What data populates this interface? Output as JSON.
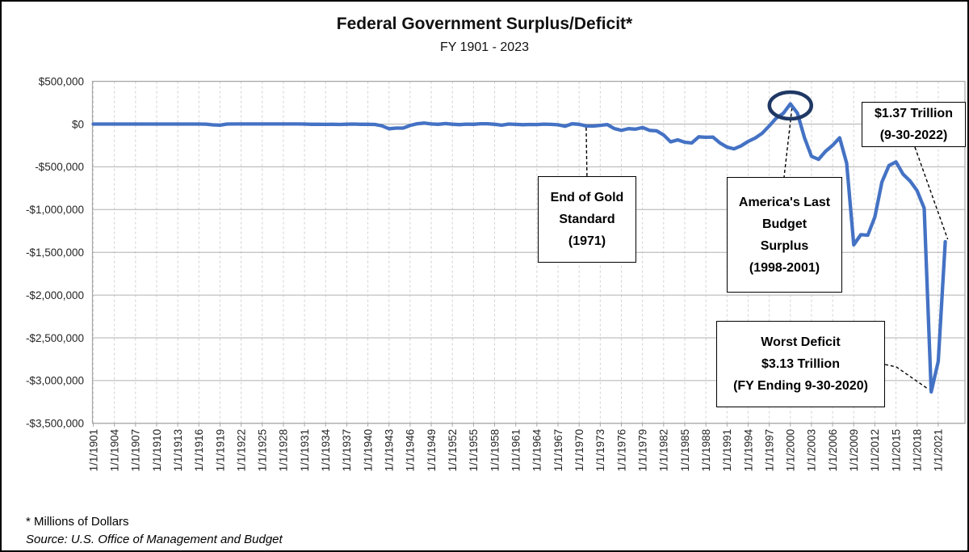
{
  "title": "Federal Government Surplus/Deficit*",
  "subtitle": "FY 1901 - 2023",
  "footnotes": {
    "units": "* Millions of Dollars",
    "source": "Source: U.S. Office of Management and Budget"
  },
  "colors": {
    "line": "#4472C4",
    "highlight_ellipse": "#1F3864",
    "h_gridline": "#b0b0b0",
    "v_gridline": "#d2d2d2",
    "plot_border": "#a6a6a6",
    "tick_text": "#262626",
    "leader_line": "#000000",
    "figure_border": "#000000"
  },
  "annotations": {
    "gold_standard": {
      "lines": [
        "End of Gold",
        "Standard",
        "(1971)"
      ]
    },
    "last_surplus": {
      "lines": [
        "America's Last",
        "Budget",
        "Surplus",
        "(1998-2001)"
      ]
    },
    "deficit_2022": {
      "lines": [
        "$1.37 Trillion",
        "(9-30-2022)"
      ]
    },
    "worst_deficit": {
      "lines": [
        "Worst Deficit",
        "$3.13 Trillion",
        "(FY Ending 9-30-2020)"
      ]
    }
  },
  "chart_data": {
    "type": "line",
    "title": "Federal Government Surplus/Deficit*",
    "subtitle": "FY 1901 - 2023",
    "units": "millions of dollars",
    "xlabel": "",
    "ylabel": "",
    "ylim": [
      -3500000,
      500000
    ],
    "grid": true,
    "line_color": "#4472C4",
    "y_tick_values": [
      500000,
      0,
      -500000,
      -1000000,
      -1500000,
      -2000000,
      -2500000,
      -3000000,
      -3500000
    ],
    "y_tick_labels": [
      "$500,000",
      "$0",
      "-$500,000",
      "-$1,000,000",
      "-$1,500,000",
      "-$2,000,000",
      "-$2,500,000",
      "-$3,000,000",
      "-$3,500,000"
    ],
    "x_tick_labels": [
      "1/1/1901",
      "1/1/1904",
      "1/1/1907",
      "1/1/1910",
      "1/1/1913",
      "1/1/1916",
      "1/1/1919",
      "1/1/1922",
      "1/1/1925",
      "1/1/1928",
      "1/1/1931",
      "1/1/1934",
      "1/1/1937",
      "1/1/1940",
      "1/1/1943",
      "1/1/1946",
      "1/1/1949",
      "1/1/1952",
      "1/1/1955",
      "1/1/1958",
      "1/1/1961",
      "1/1/1964",
      "1/1/1967",
      "1/1/1970",
      "1/1/1973",
      "1/1/1976",
      "1/1/1979",
      "1/1/1982",
      "1/1/1985",
      "1/1/1988",
      "1/1/1991",
      "1/1/1994",
      "1/1/1997",
      "1/1/2000",
      "1/1/2003",
      "1/1/2006",
      "1/1/2009",
      "1/1/2012",
      "1/1/2015",
      "1/1/2018",
      "1/1/2021"
    ],
    "highlight_circle": {
      "year": 2000,
      "value": 236241
    },
    "x": [
      1901,
      1902,
      1903,
      1904,
      1905,
      1906,
      1907,
      1908,
      1909,
      1910,
      1911,
      1912,
      1913,
      1914,
      1915,
      1916,
      1917,
      1918,
      1919,
      1920,
      1921,
      1922,
      1923,
      1924,
      1925,
      1926,
      1927,
      1928,
      1929,
      1930,
      1931,
      1932,
      1933,
      1934,
      1935,
      1936,
      1937,
      1938,
      1939,
      1940,
      1941,
      1942,
      1943,
      1944,
      1945,
      1946,
      1947,
      1948,
      1949,
      1950,
      1951,
      1952,
      1953,
      1954,
      1955,
      1956,
      1957,
      1958,
      1959,
      1960,
      1961,
      1962,
      1963,
      1964,
      1965,
      1966,
      1967,
      1968,
      1969,
      1970,
      1971,
      1972,
      1973,
      1974,
      1975,
      1976,
      1977,
      1978,
      1979,
      1980,
      1981,
      1982,
      1983,
      1984,
      1985,
      1986,
      1987,
      1988,
      1989,
      1990,
      1991,
      1992,
      1993,
      1994,
      1995,
      1996,
      1997,
      1998,
      1999,
      2000,
      2001,
      2002,
      2003,
      2004,
      2005,
      2006,
      2007,
      2008,
      2009,
      2010,
      2011,
      2012,
      2013,
      2014,
      2015,
      2016,
      2017,
      2018,
      2019,
      2020,
      2021,
      2022
    ],
    "values": [
      63,
      77,
      45,
      -43,
      -23,
      25,
      87,
      -57,
      -89,
      -18,
      11,
      3,
      0,
      0,
      -63,
      48,
      -853,
      -9032,
      -13363,
      291,
      509,
      736,
      713,
      963,
      717,
      865,
      1155,
      939,
      734,
      738,
      -462,
      -2735,
      -2602,
      -3586,
      -2803,
      -4304,
      -2193,
      -89,
      -2846,
      -2920,
      -4941,
      -20503,
      -54554,
      -47557,
      -47553,
      -15936,
      4018,
      11796,
      580,
      -3119,
      6102,
      -1519,
      -6493,
      -1154,
      -2993,
      3947,
      3412,
      -2769,
      -12849,
      301,
      -3335,
      -7146,
      -4756,
      -5915,
      -1411,
      -3698,
      -8643,
      -25161,
      3242,
      -2842,
      -23033,
      -23373,
      -14908,
      -6135,
      -53242,
      -73732,
      -53659,
      -59185,
      -40726,
      -73830,
      -78968,
      -127977,
      -207802,
      -185367,
      -212308,
      -221227,
      -149730,
      -155178,
      -152639,
      -221036,
      -269238,
      -290321,
      -255051,
      -203186,
      -163952,
      -107431,
      -21884,
      69270,
      125610,
      236241,
      128236,
      -157758,
      -377585,
      -412727,
      -318346,
      -248181,
      -160701,
      -458553,
      -1412688,
      -1294373,
      -1299599,
      -1086963,
      -679775,
      -484793,
      -441960,
      -584651,
      -665446,
      -779137,
      -983592,
      -3131917,
      -2775535,
      -1375389
    ]
  }
}
